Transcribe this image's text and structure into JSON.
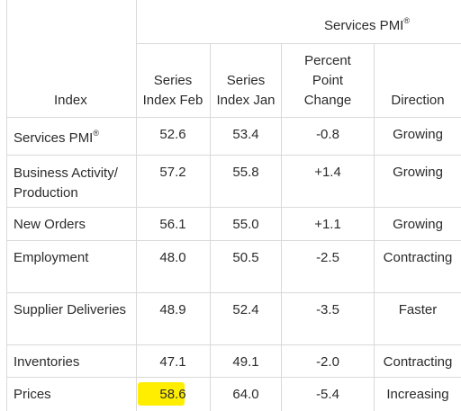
{
  "group_header": {
    "label": "Services PMI",
    "mark": "®"
  },
  "columns": {
    "index": "Index",
    "feb": [
      "Series",
      "Index Feb"
    ],
    "jan": [
      "Series",
      "Index Jan"
    ],
    "change": [
      "Percent",
      "Point",
      "Change"
    ],
    "direction": "Direction"
  },
  "rows": [
    {
      "name": "Services PMI",
      "mark": "®",
      "feb": "52.6",
      "jan": "53.4",
      "change": "-0.8",
      "direction": "Growing"
    },
    {
      "name_lines": [
        "Business Activity/",
        "Production"
      ],
      "feb": "57.2",
      "jan": "55.8",
      "change": "+1.4",
      "direction": "Growing"
    },
    {
      "name": "New Orders",
      "feb": "56.1",
      "jan": "55.0",
      "change": "+1.1",
      "direction": "Growing"
    },
    {
      "name": "Employment",
      "feb": "48.0",
      "jan": "50.5",
      "change": "-2.5",
      "direction": "Contracting"
    },
    {
      "name": "Supplier Deliveries",
      "feb": "48.9",
      "jan": "52.4",
      "change": "-3.5",
      "direction": "Faster"
    },
    {
      "name": "Inventories",
      "feb": "47.1",
      "jan": "49.1",
      "change": "-2.0",
      "direction": "Contracting"
    },
    {
      "name": "Prices",
      "feb": "58.6",
      "jan": "64.0",
      "change": "-5.4",
      "direction": "Increasing",
      "highlight": "#ffee00"
    }
  ]
}
